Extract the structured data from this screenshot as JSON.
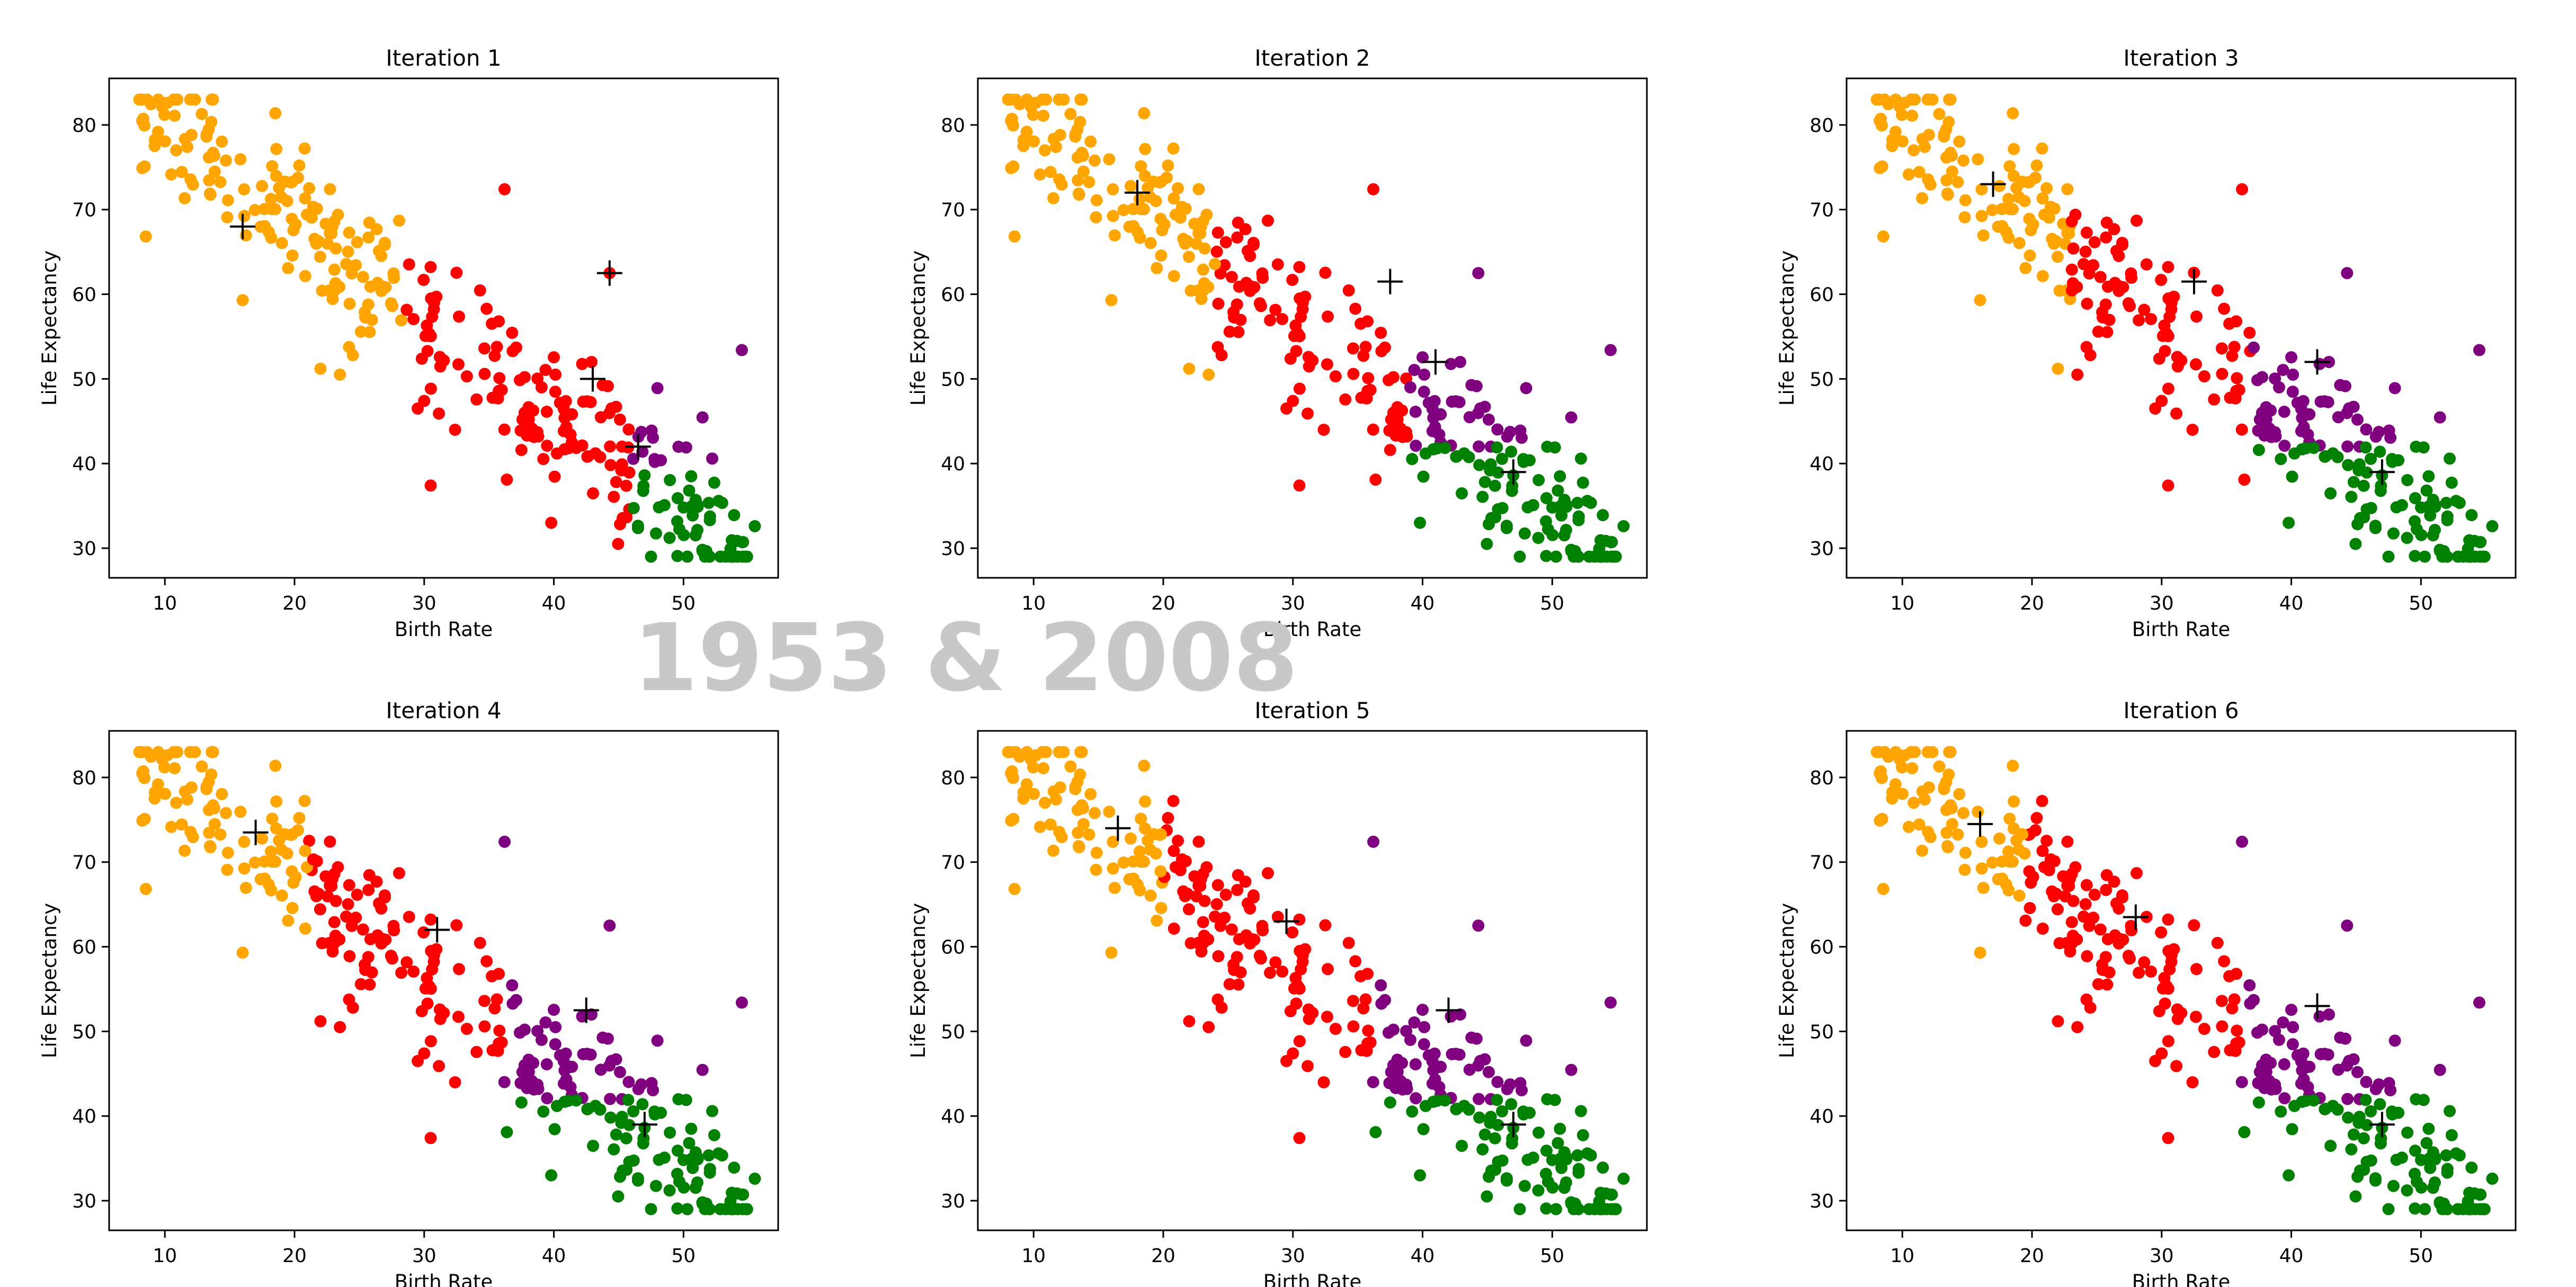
{
  "figure": {
    "overlay_text": "1953 & 2008",
    "colors": {
      "orange": "#ffa500",
      "red": "#ff0000",
      "purple": "#800080",
      "green": "#008000",
      "centroid": "#000000"
    }
  },
  "chart_data": [
    {
      "type": "scatter",
      "title": "Iteration 1",
      "xlabel": "Birth Rate",
      "ylabel": "Life Expectancy",
      "xlim": [
        5.7,
        57.3
      ],
      "ylim": [
        26.5,
        85.5
      ],
      "xticks": [
        10,
        20,
        30,
        40,
        50
      ],
      "yticks": [
        30,
        40,
        50,
        60,
        70,
        80
      ],
      "grid": false,
      "cluster_split": [
        28.5,
        46,
        40
      ],
      "centroids": [
        [
          16,
          68
        ],
        [
          44.3,
          62.5
        ],
        [
          43,
          50
        ],
        [
          46.5,
          42
        ]
      ]
    },
    {
      "type": "scatter",
      "title": "Iteration 2",
      "xlabel": "Birth Rate",
      "ylabel": "Life Expectancy",
      "xlim": [
        5.7,
        57.3
      ],
      "ylim": [
        26.5,
        85.5
      ],
      "xticks": [
        10,
        20,
        30,
        40,
        50
      ],
      "yticks": [
        30,
        40,
        50,
        60,
        70,
        80
      ],
      "grid": false,
      "cluster_split": [
        24,
        39,
        42
      ],
      "centroids": [
        [
          18,
          72
        ],
        [
          37.5,
          61.5
        ],
        [
          41,
          52
        ],
        [
          47,
          39
        ]
      ]
    },
    {
      "type": "scatter",
      "title": "Iteration 3",
      "xlabel": "Birth Rate",
      "ylabel": "Life Expectancy",
      "xlim": [
        5.7,
        57.3
      ],
      "ylim": [
        26.5,
        85.5
      ],
      "xticks": [
        10,
        20,
        30,
        40,
        50
      ],
      "yticks": [
        30,
        40,
        50,
        60,
        70,
        80
      ],
      "grid": false,
      "cluster_split": [
        23,
        37,
        42
      ],
      "centroids": [
        [
          17,
          73
        ],
        [
          32.5,
          61.5
        ],
        [
          42,
          52
        ],
        [
          47,
          39
        ]
      ]
    },
    {
      "type": "scatter",
      "title": "Iteration 4",
      "xlabel": "Birth Rate",
      "ylabel": "Life Expectancy",
      "xlim": [
        5.7,
        57.3
      ],
      "ylim": [
        26.5,
        85.5
      ],
      "xticks": [
        10,
        20,
        30,
        40,
        50
      ],
      "yticks": [
        30,
        40,
        50,
        60,
        70,
        80
      ],
      "grid": false,
      "cluster_split": [
        21,
        36,
        42
      ],
      "centroids": [
        [
          17,
          73.5
        ],
        [
          31,
          62
        ],
        [
          42.5,
          52.5
        ],
        [
          47,
          39
        ]
      ]
    },
    {
      "type": "scatter",
      "title": "Iteration 5",
      "xlabel": "Birth Rate",
      "ylabel": "Life Expectancy",
      "xlim": [
        5.7,
        57.3
      ],
      "ylim": [
        26.5,
        85.5
      ],
      "xticks": [
        10,
        20,
        30,
        40,
        50
      ],
      "yticks": [
        30,
        40,
        50,
        60,
        70,
        80
      ],
      "grid": false,
      "cluster_split": [
        20,
        36,
        42
      ],
      "centroids": [
        [
          16.5,
          74
        ],
        [
          29.5,
          63
        ],
        [
          42,
          52.5
        ],
        [
          47,
          39
        ]
      ]
    },
    {
      "type": "scatter",
      "title": "Iteration 6",
      "xlabel": "Birth Rate",
      "ylabel": "Life Expectancy",
      "xlim": [
        5.7,
        57.3
      ],
      "ylim": [
        26.5,
        85.5
      ],
      "xticks": [
        10,
        20,
        30,
        40,
        50
      ],
      "yticks": [
        30,
        40,
        50,
        60,
        70,
        80
      ],
      "grid": false,
      "cluster_split": [
        19.5,
        36,
        42
      ],
      "centroids": [
        [
          16,
          74.5
        ],
        [
          28,
          63.5
        ],
        [
          42,
          53
        ],
        [
          47,
          39
        ]
      ]
    }
  ]
}
